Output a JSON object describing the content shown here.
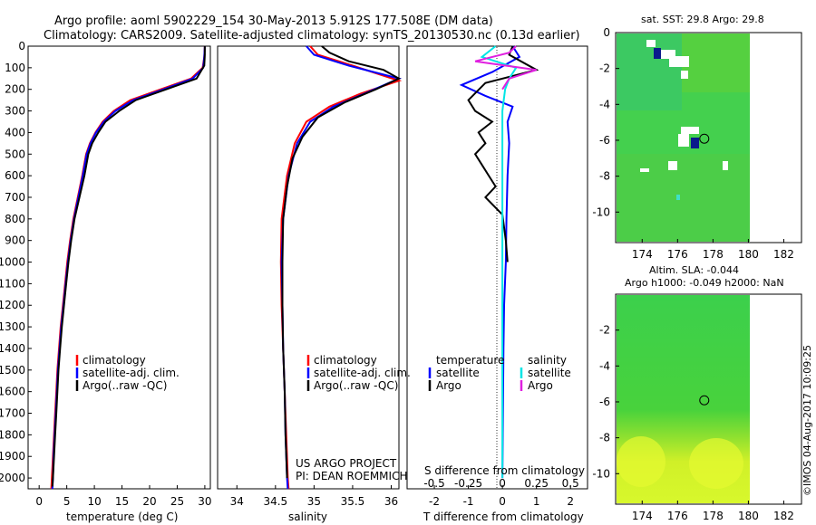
{
  "header": {
    "line1": "Argo profile: aoml 5902229_154 30-May-2013 5.912S 177.508E (DM data)",
    "line2": "Climatology: CARS2009. Satellite-adjusted climatology: synTS_20130530.nc (0.13d earlier)"
  },
  "colors": {
    "climatology": "#ff0000",
    "satellite": "#0000ff",
    "argo": "#000000",
    "sal_satellite": "#00e5e5",
    "sal_argo": "#e020e0"
  },
  "chart_data": [
    {
      "type": "line",
      "xlabel": "temperature (deg C)",
      "ylabel": "",
      "xlim": [
        -2,
        31
      ],
      "ylim": [
        2050,
        0
      ],
      "xticks": [
        0,
        5,
        10,
        15,
        20,
        25,
        30
      ],
      "yticks": [
        0,
        100,
        200,
        300,
        400,
        500,
        600,
        700,
        800,
        900,
        1000,
        1100,
        1200,
        1300,
        1400,
        1500,
        1600,
        1700,
        1800,
        1900,
        2000
      ],
      "legend": [
        "climatology",
        "satellite-adj. clim.",
        "Argo(..raw -QC)"
      ],
      "series": [
        {
          "name": "climatology",
          "color": "#ff0000",
          "points": [
            [
              30.0,
              0
            ],
            [
              29.9,
              50
            ],
            [
              29.6,
              100
            ],
            [
              27.5,
              150
            ],
            [
              22,
              200
            ],
            [
              16.5,
              250
            ],
            [
              13.5,
              300
            ],
            [
              11.5,
              350
            ],
            [
              10.2,
              400
            ],
            [
              9.2,
              450
            ],
            [
              8.5,
              500
            ],
            [
              7.8,
              600
            ],
            [
              7.0,
              700
            ],
            [
              6.2,
              800
            ],
            [
              5.6,
              900
            ],
            [
              5.1,
              1000
            ],
            [
              4.7,
              1100
            ],
            [
              4.3,
              1200
            ],
            [
              3.9,
              1300
            ],
            [
              3.6,
              1400
            ],
            [
              3.3,
              1500
            ],
            [
              3.1,
              1600
            ],
            [
              2.9,
              1700
            ],
            [
              2.7,
              1800
            ],
            [
              2.5,
              1900
            ],
            [
              2.3,
              2000
            ],
            [
              2.2,
              2050
            ]
          ]
        },
        {
          "name": "satellite-adj. clim.",
          "color": "#0000ff",
          "points": [
            [
              30.0,
              0
            ],
            [
              29.9,
              50
            ],
            [
              29.7,
              100
            ],
            [
              27.8,
              150
            ],
            [
              22.5,
              200
            ],
            [
              17,
              250
            ],
            [
              13.8,
              300
            ],
            [
              11.7,
              350
            ],
            [
              10.3,
              400
            ],
            [
              9.3,
              450
            ],
            [
              8.6,
              500
            ],
            [
              7.9,
              600
            ],
            [
              7.1,
              700
            ],
            [
              6.3,
              800
            ],
            [
              5.7,
              900
            ],
            [
              5.2,
              1000
            ],
            [
              4.8,
              1100
            ],
            [
              4.4,
              1200
            ],
            [
              4.0,
              1300
            ],
            [
              3.7,
              1400
            ],
            [
              3.4,
              1500
            ],
            [
              3.2,
              1600
            ],
            [
              3.0,
              1700
            ],
            [
              2.8,
              1800
            ],
            [
              2.6,
              1900
            ],
            [
              2.5,
              2000
            ],
            [
              2.4,
              2050
            ]
          ]
        },
        {
          "name": "Argo(..raw -QC)",
          "color": "#000000",
          "points": [
            [
              30.0,
              0
            ],
            [
              30.0,
              40
            ],
            [
              29.9,
              90
            ],
            [
              28.5,
              150
            ],
            [
              23,
              200
            ],
            [
              17.5,
              250
            ],
            [
              14.5,
              300
            ],
            [
              12.0,
              350
            ],
            [
              10.7,
              400
            ],
            [
              9.6,
              450
            ],
            [
              8.9,
              500
            ],
            [
              8.2,
              600
            ],
            [
              7.3,
              700
            ],
            [
              6.4,
              800
            ],
            [
              5.8,
              900
            ],
            [
              5.3,
              1000
            ],
            [
              4.9,
              1100
            ],
            [
              4.5,
              1200
            ],
            [
              4.1,
              1300
            ],
            [
              3.8,
              1400
            ],
            [
              3.5,
              1500
            ],
            [
              3.3,
              1600
            ],
            [
              3.1,
              1700
            ],
            [
              2.9,
              1800
            ],
            [
              2.7,
              1900
            ],
            [
              2.5,
              2000
            ],
            [
              2.4,
              2040
            ]
          ]
        }
      ]
    },
    {
      "type": "line",
      "xlabel": "salinity",
      "xlim": [
        33.75,
        36.1
      ],
      "ylim": [
        2050,
        0
      ],
      "xticks": [
        34,
        34.5,
        35,
        35.5,
        36
      ],
      "legend": [
        "climatology",
        "satellite-adj. clim.",
        "Argo(..raw -QC)"
      ],
      "annotation": [
        "US ARGO PROJECT",
        "PI: DEAN ROEMMICH"
      ],
      "series": [
        {
          "name": "climatology",
          "color": "#ff0000",
          "points": [
            [
              34.95,
              0
            ],
            [
              35.05,
              40
            ],
            [
              35.5,
              90
            ],
            [
              36.1,
              160
            ],
            [
              35.6,
              220
            ],
            [
              35.2,
              280
            ],
            [
              34.9,
              350
            ],
            [
              34.75,
              450
            ],
            [
              34.65,
              600
            ],
            [
              34.58,
              800
            ],
            [
              34.57,
              1000
            ],
            [
              34.58,
              1200
            ],
            [
              34.6,
              1400
            ],
            [
              34.62,
              1600
            ],
            [
              34.64,
              1800
            ],
            [
              34.66,
              2000
            ],
            [
              34.67,
              2050
            ]
          ]
        },
        {
          "name": "satellite-adj. clim.",
          "color": "#0000ff",
          "points": [
            [
              34.9,
              0
            ],
            [
              35.0,
              40
            ],
            [
              35.45,
              90
            ],
            [
              36.1,
              150
            ],
            [
              35.65,
              220
            ],
            [
              35.25,
              280
            ],
            [
              34.95,
              350
            ],
            [
              34.78,
              450
            ],
            [
              34.67,
              600
            ],
            [
              34.6,
              800
            ],
            [
              34.58,
              1000
            ],
            [
              34.59,
              1200
            ],
            [
              34.6,
              1400
            ],
            [
              34.62,
              1600
            ],
            [
              34.63,
              1800
            ],
            [
              34.65,
              2000
            ],
            [
              34.66,
              2050
            ]
          ]
        },
        {
          "name": "Argo(..raw -QC)",
          "color": "#000000",
          "points": [
            [
              35.1,
              0
            ],
            [
              35.2,
              30
            ],
            [
              35.45,
              70
            ],
            [
              35.9,
              110
            ],
            [
              36.1,
              150
            ],
            [
              35.8,
              200
            ],
            [
              35.4,
              260
            ],
            [
              35.05,
              330
            ],
            [
              34.85,
              420
            ],
            [
              34.72,
              520
            ],
            [
              34.65,
              650
            ],
            [
              34.6,
              800
            ],
            [
              34.59,
              1000
            ],
            [
              34.59,
              1200
            ],
            [
              34.6,
              1400
            ],
            [
              34.62,
              1600
            ],
            [
              34.63,
              1800
            ],
            [
              34.65,
              2000
            ]
          ]
        }
      ]
    },
    {
      "type": "line",
      "xlabel": "T difference from climatology",
      "xlabel2": "S difference from climatology",
      "xlim": [
        -2.8,
        2.5
      ],
      "ylim": [
        2050,
        0
      ],
      "xticks": [
        -2,
        -1,
        0,
        1,
        2
      ],
      "xticks2": [
        -0.5,
        -0.25,
        0,
        0.25,
        0.5
      ],
      "xlim2": [
        -0.7,
        0.625
      ],
      "legend_title_left": "temperature",
      "legend_title_right": "salinity",
      "legend": [
        "satellite",
        "Argo",
        "satellite",
        "Argo"
      ],
      "series": [
        {
          "name": "temperature satellite",
          "axis": "T",
          "color": "#0000ff",
          "points": [
            [
              0.3,
              0
            ],
            [
              0.5,
              50
            ],
            [
              -0.3,
              120
            ],
            [
              -1.2,
              180
            ],
            [
              -0.5,
              230
            ],
            [
              0.3,
              280
            ],
            [
              0.15,
              350
            ],
            [
              0.2,
              450
            ],
            [
              0.15,
              600
            ],
            [
              0.12,
              800
            ],
            [
              0.1,
              1000
            ],
            [
              0.05,
              1200
            ],
            [
              0.03,
              1400
            ],
            [
              0.02,
              1600
            ],
            [
              0.01,
              1800
            ],
            [
              0.0,
              2000
            ]
          ]
        },
        {
          "name": "temperature Argo",
          "axis": "T",
          "color": "#000000",
          "points": [
            [
              0.3,
              0
            ],
            [
              0.2,
              40
            ],
            [
              1.0,
              110
            ],
            [
              -0.5,
              170
            ],
            [
              -1.0,
              250
            ],
            [
              -0.8,
              300
            ],
            [
              -0.3,
              350
            ],
            [
              -0.7,
              400
            ],
            [
              -0.5,
              450
            ],
            [
              -0.8,
              500
            ],
            [
              -0.6,
              550
            ],
            [
              -0.4,
              600
            ],
            [
              -0.2,
              650
            ],
            [
              -0.5,
              700
            ],
            [
              0.0,
              780
            ],
            [
              0.1,
              900
            ],
            [
              0.15,
              1000
            ]
          ]
        },
        {
          "name": "salinity satellite",
          "axis": "S",
          "color": "#00e5e5",
          "points": [
            [
              -0.05,
              0
            ],
            [
              -0.15,
              50
            ],
            [
              0.1,
              100
            ],
            [
              0.05,
              150
            ],
            [
              0.02,
              200
            ],
            [
              0.0,
              300
            ],
            [
              0.0,
              500
            ],
            [
              0.0,
              800
            ],
            [
              0.0,
              1100
            ],
            [
              0.0,
              1500
            ],
            [
              0.0,
              2000
            ]
          ]
        },
        {
          "name": "salinity Argo",
          "axis": "S",
          "color": "#e020e0",
          "points": [
            [
              0.1,
              0
            ],
            [
              0.05,
              30
            ],
            [
              -0.2,
              70
            ],
            [
              0.25,
              110
            ],
            [
              0.05,
              150
            ],
            [
              0.0,
              200
            ]
          ]
        }
      ]
    },
    {
      "type": "heatmap",
      "title": "sat. SST: 29.8 Argo: 29.8",
      "xlim": [
        172.5,
        183
      ],
      "ylim": [
        -11.7,
        0
      ],
      "xticks": [
        174,
        176,
        178,
        180,
        182
      ],
      "yticks": [
        0,
        -2,
        -4,
        -6,
        -8,
        -10
      ],
      "marker": [
        177.508,
        -5.912
      ]
    },
    {
      "type": "heatmap",
      "title": "Altim. SLA: -0.044",
      "title2": "Argo h1000: -0.049 h2000: NaN",
      "xlim": [
        172.5,
        183
      ],
      "ylim": [
        -11.7,
        0
      ],
      "xticks": [
        174,
        176,
        178,
        180,
        182
      ],
      "yticks": [
        -2,
        -4,
        -6,
        -8,
        -10
      ],
      "marker": [
        177.508,
        -5.912
      ]
    }
  ],
  "footer": {
    "stamp": "©IMOS 04-Aug-2017 10:09:25"
  }
}
